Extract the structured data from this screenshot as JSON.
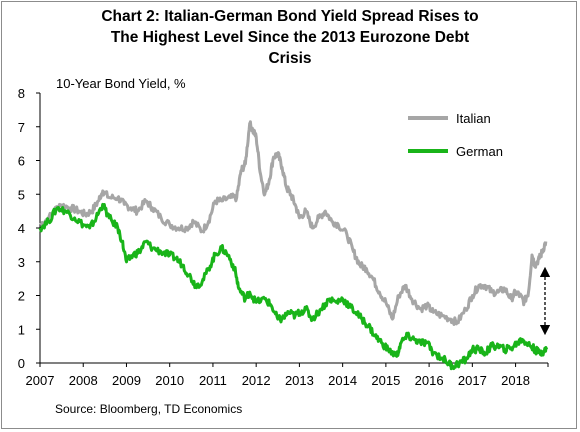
{
  "chart_data": {
    "type": "line",
    "title": "Chart 2: Italian-German Bond Yield Spread Rises to\nThe Highest Level Since the 2013 Eurozone Debt\nCrisis",
    "ylabel": "10-Year Bond Yield, %",
    "xlabel": "",
    "ylim": [
      0,
      8
    ],
    "xlim": [
      2007,
      2018.75
    ],
    "y_ticks": [
      0,
      1,
      2,
      3,
      4,
      5,
      6,
      7,
      8
    ],
    "x_tick_labels": [
      "2007",
      "2008",
      "2009",
      "2010",
      "2011",
      "2012",
      "2013",
      "2014",
      "2015",
      "2016",
      "2017",
      "2018"
    ],
    "grid": false,
    "legend_position": "top-right",
    "annotations": [
      "double-headed arrow marking the Italian-German spread in 2018"
    ],
    "series": [
      {
        "name": "Italian",
        "color": "#a6a6a6",
        "points": [
          [
            2007.0,
            4.1
          ],
          [
            2007.2,
            4.3
          ],
          [
            2007.45,
            4.7
          ],
          [
            2007.7,
            4.6
          ],
          [
            2007.9,
            4.5
          ],
          [
            2008.05,
            4.4
          ],
          [
            2008.2,
            4.5
          ],
          [
            2008.35,
            4.8
          ],
          [
            2008.45,
            5.1
          ],
          [
            2008.6,
            4.9
          ],
          [
            2008.8,
            4.9
          ],
          [
            2008.95,
            4.7
          ],
          [
            2009.1,
            4.6
          ],
          [
            2009.25,
            4.5
          ],
          [
            2009.45,
            4.8
          ],
          [
            2009.6,
            4.6
          ],
          [
            2009.8,
            4.3
          ],
          [
            2010.0,
            4.1
          ],
          [
            2010.2,
            4.0
          ],
          [
            2010.4,
            4.0
          ],
          [
            2010.55,
            4.2
          ],
          [
            2010.75,
            3.9
          ],
          [
            2010.9,
            4.2
          ],
          [
            2011.05,
            4.8
          ],
          [
            2011.2,
            4.8
          ],
          [
            2011.4,
            4.9
          ],
          [
            2011.55,
            4.9
          ],
          [
            2011.65,
            5.7
          ],
          [
            2011.75,
            5.9
          ],
          [
            2011.85,
            7.1
          ],
          [
            2011.92,
            6.9
          ],
          [
            2012.0,
            6.7
          ],
          [
            2012.1,
            5.6
          ],
          [
            2012.2,
            5.0
          ],
          [
            2012.3,
            5.4
          ],
          [
            2012.4,
            6.1
          ],
          [
            2012.5,
            6.2
          ],
          [
            2012.6,
            5.8
          ],
          [
            2012.7,
            5.2
          ],
          [
            2012.8,
            5.0
          ],
          [
            2012.9,
            4.7
          ],
          [
            2013.0,
            4.3
          ],
          [
            2013.15,
            4.5
          ],
          [
            2013.3,
            4.0
          ],
          [
            2013.45,
            4.3
          ],
          [
            2013.6,
            4.5
          ],
          [
            2013.75,
            4.2
          ],
          [
            2013.9,
            4.1
          ],
          [
            2014.1,
            3.8
          ],
          [
            2014.25,
            3.3
          ],
          [
            2014.4,
            2.9
          ],
          [
            2014.55,
            2.8
          ],
          [
            2014.7,
            2.5
          ],
          [
            2014.85,
            2.1
          ],
          [
            2015.0,
            1.8
          ],
          [
            2015.15,
            1.3
          ],
          [
            2015.3,
            2.0
          ],
          [
            2015.45,
            2.3
          ],
          [
            2015.6,
            1.9
          ],
          [
            2015.8,
            1.6
          ],
          [
            2015.95,
            1.7
          ],
          [
            2016.1,
            1.5
          ],
          [
            2016.3,
            1.4
          ],
          [
            2016.5,
            1.3
          ],
          [
            2016.65,
            1.2
          ],
          [
            2016.85,
            1.6
          ],
          [
            2017.0,
            2.0
          ],
          [
            2017.15,
            2.3
          ],
          [
            2017.3,
            2.3
          ],
          [
            2017.45,
            2.1
          ],
          [
            2017.6,
            2.1
          ],
          [
            2017.75,
            2.2
          ],
          [
            2017.9,
            1.9
          ],
          [
            2018.0,
            2.1
          ],
          [
            2018.1,
            2.0
          ],
          [
            2018.2,
            1.8
          ],
          [
            2018.3,
            2.1
          ],
          [
            2018.38,
            3.2
          ],
          [
            2018.45,
            2.9
          ],
          [
            2018.55,
            3.1
          ],
          [
            2018.62,
            3.3
          ],
          [
            2018.7,
            3.6
          ]
        ]
      },
      {
        "name": "German",
        "color": "#19b419",
        "points": [
          [
            2007.0,
            4.0
          ],
          [
            2007.2,
            4.2
          ],
          [
            2007.4,
            4.6
          ],
          [
            2007.6,
            4.5
          ],
          [
            2007.8,
            4.3
          ],
          [
            2008.0,
            4.1
          ],
          [
            2008.15,
            4.0
          ],
          [
            2008.3,
            4.3
          ],
          [
            2008.45,
            4.7
          ],
          [
            2008.6,
            4.3
          ],
          [
            2008.8,
            4.0
          ],
          [
            2008.9,
            3.6
          ],
          [
            2009.0,
            3.0
          ],
          [
            2009.15,
            3.2
          ],
          [
            2009.3,
            3.3
          ],
          [
            2009.45,
            3.6
          ],
          [
            2009.6,
            3.4
          ],
          [
            2009.8,
            3.3
          ],
          [
            2010.0,
            3.2
          ],
          [
            2010.15,
            3.1
          ],
          [
            2010.3,
            2.9
          ],
          [
            2010.45,
            2.6
          ],
          [
            2010.6,
            2.3
          ],
          [
            2010.75,
            2.4
          ],
          [
            2010.9,
            2.8
          ],
          [
            2011.05,
            3.2
          ],
          [
            2011.2,
            3.4
          ],
          [
            2011.35,
            3.2
          ],
          [
            2011.5,
            2.8
          ],
          [
            2011.6,
            2.2
          ],
          [
            2011.75,
            1.9
          ],
          [
            2011.85,
            2.1
          ],
          [
            2012.0,
            1.8
          ],
          [
            2012.2,
            1.9
          ],
          [
            2012.35,
            1.7
          ],
          [
            2012.5,
            1.3
          ],
          [
            2012.6,
            1.3
          ],
          [
            2012.75,
            1.5
          ],
          [
            2012.9,
            1.4
          ],
          [
            2013.0,
            1.5
          ],
          [
            2013.15,
            1.6
          ],
          [
            2013.3,
            1.3
          ],
          [
            2013.5,
            1.6
          ],
          [
            2013.7,
            1.9
          ],
          [
            2013.85,
            1.8
          ],
          [
            2014.0,
            1.9
          ],
          [
            2014.15,
            1.7
          ],
          [
            2014.3,
            1.5
          ],
          [
            2014.45,
            1.3
          ],
          [
            2014.6,
            1.1
          ],
          [
            2014.75,
            0.8
          ],
          [
            2014.9,
            0.6
          ],
          [
            2015.05,
            0.4
          ],
          [
            2015.25,
            0.2
          ],
          [
            2015.35,
            0.6
          ],
          [
            2015.5,
            0.8
          ],
          [
            2015.65,
            0.7
          ],
          [
            2015.8,
            0.6
          ],
          [
            2015.95,
            0.6
          ],
          [
            2016.1,
            0.3
          ],
          [
            2016.3,
            0.15
          ],
          [
            2016.45,
            0.0
          ],
          [
            2016.55,
            -0.1
          ],
          [
            2016.7,
            0.0
          ],
          [
            2016.85,
            0.1
          ],
          [
            2017.0,
            0.4
          ],
          [
            2017.15,
            0.4
          ],
          [
            2017.3,
            0.3
          ],
          [
            2017.45,
            0.5
          ],
          [
            2017.6,
            0.5
          ],
          [
            2017.75,
            0.4
          ],
          [
            2017.9,
            0.45
          ],
          [
            2018.05,
            0.6
          ],
          [
            2018.15,
            0.7
          ],
          [
            2018.25,
            0.6
          ],
          [
            2018.35,
            0.5
          ],
          [
            2018.45,
            0.4
          ],
          [
            2018.55,
            0.3
          ],
          [
            2018.65,
            0.35
          ],
          [
            2018.72,
            0.4
          ]
        ]
      }
    ]
  },
  "source": "Source: Bloomberg, TD Economics"
}
